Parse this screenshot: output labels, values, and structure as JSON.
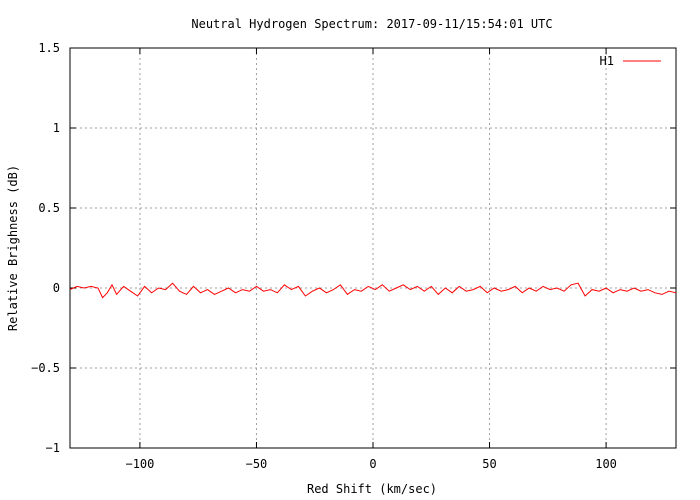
{
  "chart_data": {
    "type": "line",
    "title": "Neutral Hydrogen Spectrum: 2017-09-11/15:54:01 UTC",
    "xlabel": "Red Shift (km/sec)",
    "ylabel": "Relative Brighness (dB)",
    "xlim": [
      -130,
      130
    ],
    "ylim": [
      -1,
      1.5
    ],
    "xticks": [
      -100,
      -50,
      0,
      50,
      100
    ],
    "xtick_labels": [
      "−100",
      "−50",
      "0",
      "50",
      "100"
    ],
    "yticks": [
      -1,
      -0.5,
      0,
      0.5,
      1,
      1.5
    ],
    "ytick_labels": [
      "−1",
      "−0.5",
      "0",
      "0.5",
      "1",
      "1.5"
    ],
    "grid": true,
    "legend_position": "top-right",
    "series": [
      {
        "name": "H1",
        "color": "#ff0000",
        "x": [
          -130,
          -127,
          -124,
          -121,
          -118,
          -116,
          -114,
          -112,
          -110,
          -107,
          -104,
          -101,
          -98,
          -95,
          -92,
          -89,
          -86,
          -83,
          -80,
          -77,
          -74,
          -71,
          -68,
          -65,
          -62,
          -59,
          -56,
          -53,
          -50,
          -47,
          -44,
          -41,
          -38,
          -35,
          -32,
          -29,
          -26,
          -23,
          -20,
          -17,
          -14,
          -11,
          -8,
          -5,
          -2,
          1,
          4,
          7,
          10,
          13,
          16,
          19,
          22,
          25,
          28,
          31,
          34,
          37,
          40,
          43,
          46,
          49,
          52,
          55,
          58,
          61,
          64,
          67,
          70,
          73,
          76,
          79,
          82,
          85,
          88,
          91,
          94,
          97,
          100,
          103,
          106,
          109,
          112,
          115,
          118,
          121,
          124,
          127,
          130
        ],
        "y": [
          -0.01,
          0.01,
          0.0,
          0.01,
          0.0,
          -0.06,
          -0.03,
          0.02,
          -0.04,
          0.01,
          -0.02,
          -0.05,
          0.01,
          -0.03,
          0.0,
          -0.01,
          0.03,
          -0.02,
          -0.04,
          0.01,
          -0.03,
          -0.01,
          -0.04,
          -0.02,
          0.0,
          -0.03,
          -0.01,
          -0.02,
          0.01,
          -0.02,
          -0.01,
          -0.03,
          0.02,
          -0.01,
          0.01,
          -0.05,
          -0.02,
          0.0,
          -0.03,
          -0.01,
          0.02,
          -0.04,
          -0.01,
          -0.02,
          0.01,
          -0.01,
          0.02,
          -0.02,
          0.0,
          0.02,
          -0.01,
          0.01,
          -0.02,
          0.01,
          -0.04,
          0.0,
          -0.03,
          0.01,
          -0.02,
          -0.01,
          0.01,
          -0.03,
          0.0,
          -0.02,
          -0.01,
          0.01,
          -0.03,
          0.0,
          -0.02,
          0.01,
          -0.01,
          0.0,
          -0.02,
          0.02,
          0.03,
          -0.05,
          -0.01,
          -0.02,
          0.0,
          -0.03,
          -0.01,
          -0.02,
          0.0,
          -0.02,
          -0.01,
          -0.03,
          -0.04,
          -0.02,
          -0.03
        ]
      }
    ]
  }
}
